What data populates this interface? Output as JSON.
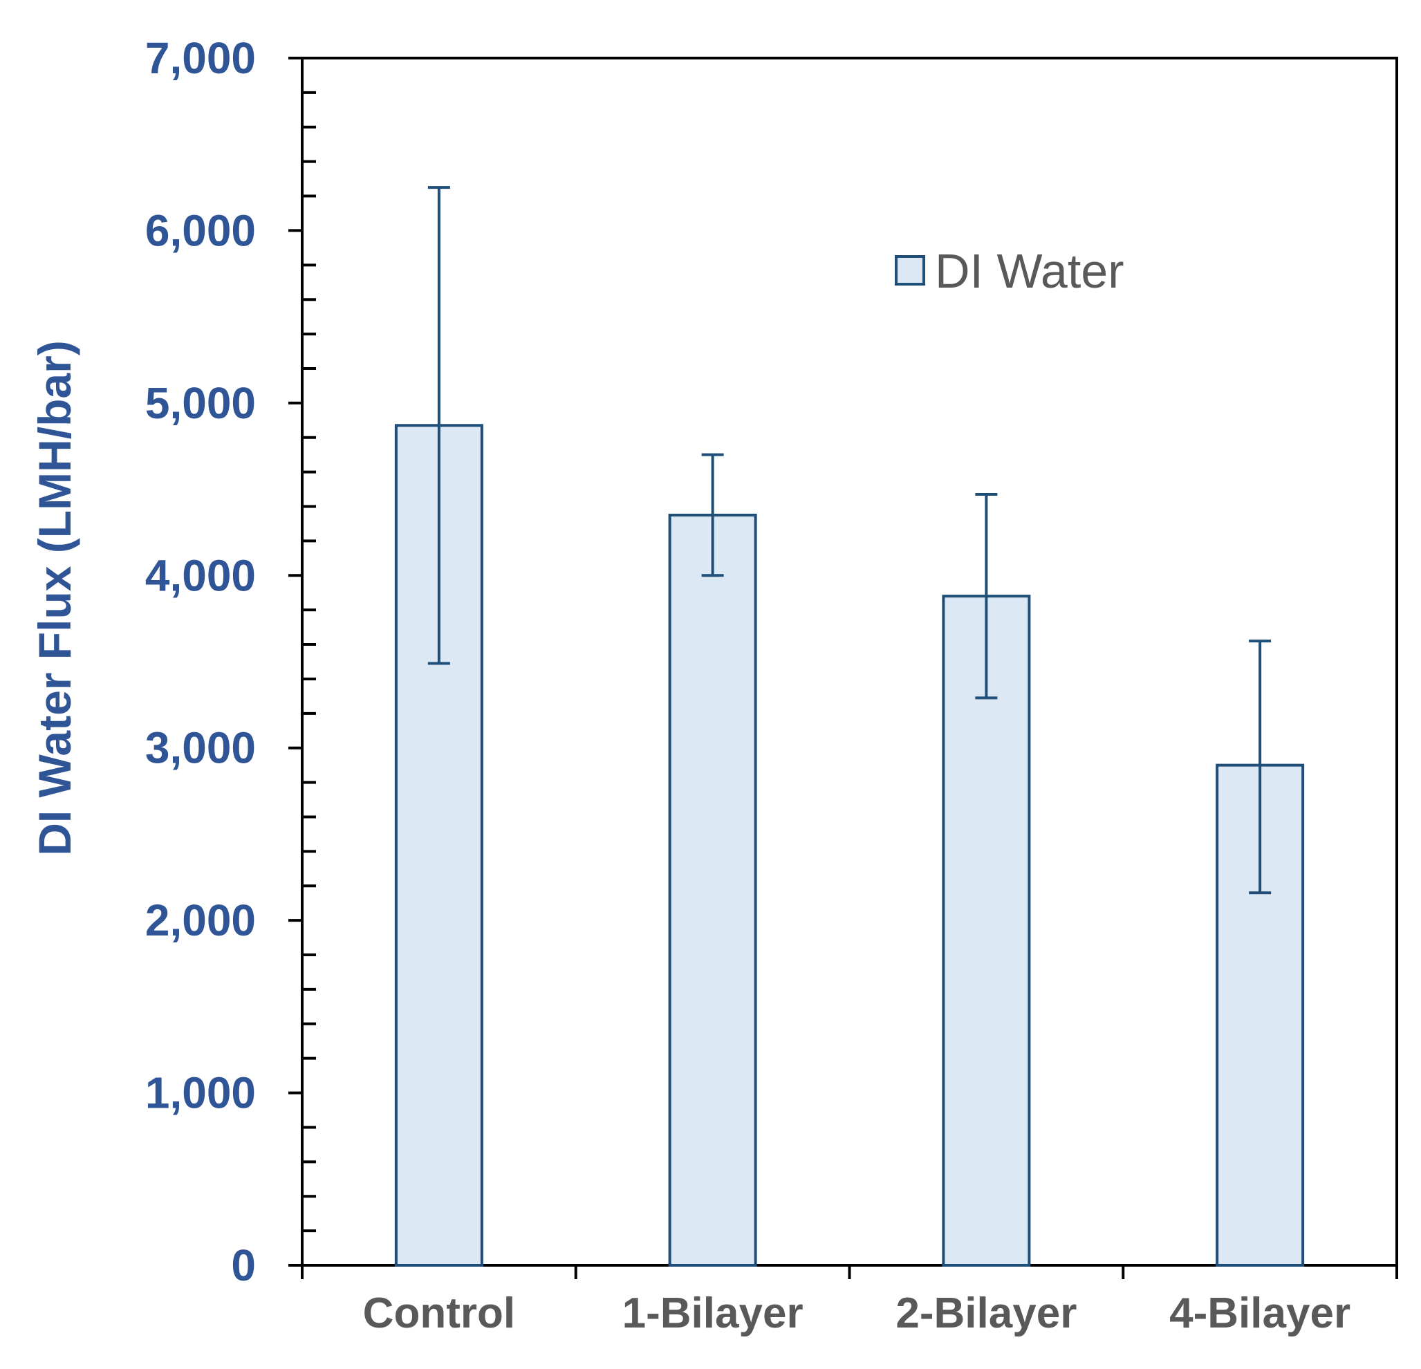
{
  "chart_data": {
    "type": "bar",
    "title": "",
    "xlabel": "",
    "ylabel": "DI Water Flux (LMH/bar)",
    "categories": [
      "Control",
      "1-Bilayer",
      "2-Bilayer",
      "4-Bilayer"
    ],
    "series": [
      {
        "name": "DI Water",
        "values": [
          4870,
          4350,
          3880,
          2900
        ],
        "error_low": [
          3490,
          4000,
          3290,
          2160
        ],
        "error_high": [
          6250,
          4700,
          4470,
          3620
        ]
      }
    ],
    "ylim": [
      0,
      7000
    ],
    "yticks": [
      0,
      1000,
      2000,
      3000,
      4000,
      5000,
      6000,
      7000
    ],
    "ytick_labels": [
      "0",
      "1,000",
      "2,000",
      "3,000",
      "4,000",
      "5,000",
      "6,000",
      "7,000"
    ],
    "minor_ticks_per_major": 5,
    "legend": {
      "label": "DI Water",
      "position": "top-right"
    },
    "grid": false,
    "colors": {
      "bar_fill": "#dde8f5",
      "bar_stroke": "#1f4e79",
      "axis": "#000000",
      "ytick_text": "#2f5597",
      "xtick_text": "#595959",
      "ylabel_text": "#2f5597"
    }
  }
}
